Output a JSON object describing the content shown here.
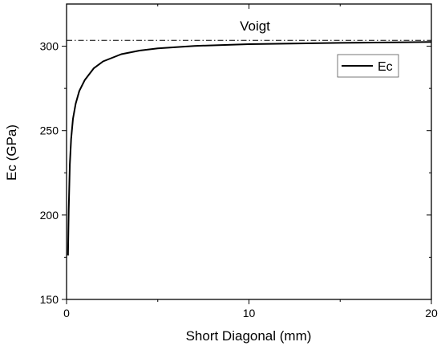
{
  "chart_data": {
    "type": "line",
    "xlabel": "Short Diagonal (mm)",
    "ylabel": "Ec (GPa)",
    "xlim": [
      0,
      20
    ],
    "ylim": [
      150,
      325
    ],
    "x_major_ticks": [
      0,
      10,
      20
    ],
    "x_minor_ticks": [
      5,
      15
    ],
    "y_major_ticks": [
      150,
      200,
      250,
      300
    ],
    "y_minor_ticks": [
      175,
      225,
      275
    ],
    "grid": false,
    "legend": {
      "placement": "top-right",
      "entries": [
        "Ec"
      ]
    },
    "series": [
      {
        "name": "Ec",
        "color": "#000000",
        "style": "solid",
        "x": [
          0.08,
          0.12,
          0.18,
          0.25,
          0.35,
          0.5,
          0.7,
          1.0,
          1.5,
          2.0,
          3.0,
          4.0,
          5.0,
          7.0,
          10.0,
          15.0,
          20.0
        ],
        "y": [
          176,
          203,
          230,
          245,
          257,
          266,
          273.5,
          280,
          287,
          291,
          295.3,
          297.4,
          298.7,
          300.2,
          301.2,
          302.0,
          302.5
        ]
      }
    ],
    "reference_line": {
      "label": "Voigt",
      "y": 303.5,
      "style": "dash-dot",
      "color": "#000000"
    }
  }
}
